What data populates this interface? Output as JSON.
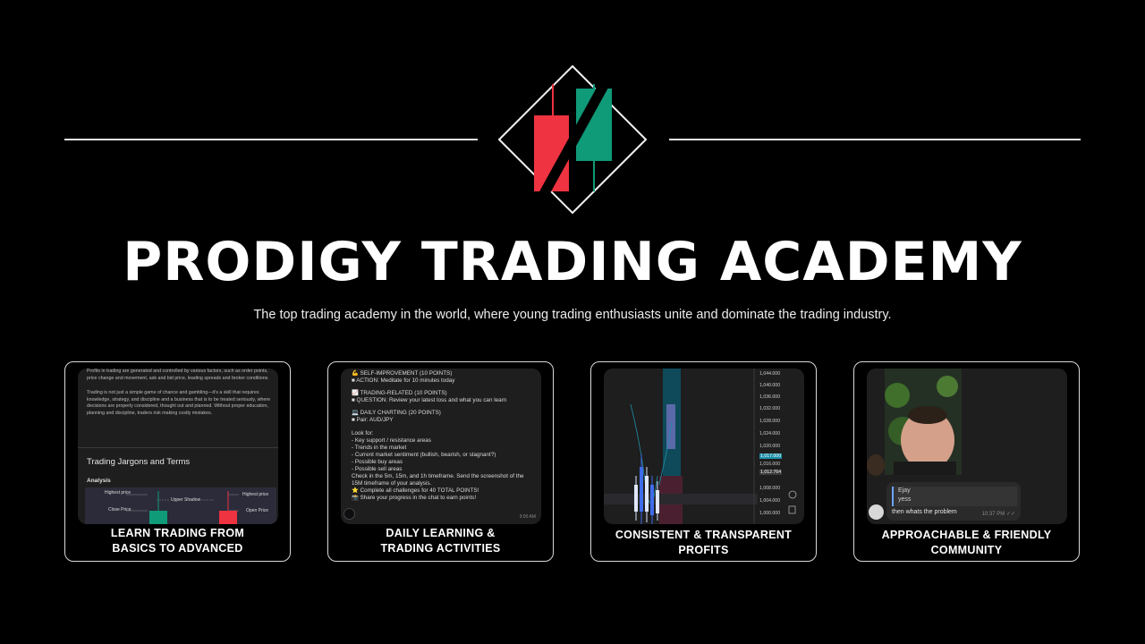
{
  "header": {
    "title": "PRODIGY TRADING ACADEMY",
    "subtitle": "The top trading academy in the world, where young trading enthusiasts unite and dominate the trading industry."
  },
  "colors": {
    "background": "#000000",
    "candle_red": "#ef3340",
    "candle_green": "#0f9a78",
    "rule": "#e8e8e8"
  },
  "cards": [
    {
      "caption_line1": "LEARN TRADING FROM",
      "caption_line2": "BASICS TO ADVANCED",
      "para1": "Profits in trading are generated and controlled by various factors, such as order points, price change and movement, ask and bid price, leading spreads and broker conditions.",
      "para2": "Trading is not just a simple game of chance and gambling—it's a skill that requires knowledge, strategy, and discipline and a business that is to be treated seriously, where decisions are properly considered, thought out and planned. Without proper education, planning and discipline, traders risk making costly mistakes.",
      "heading": "Trading Jargons and Terms",
      "section": "Analysis",
      "labels": [
        "Highest price",
        "Upper Shadow",
        "Highest price",
        "Close Price",
        "Open Price"
      ]
    },
    {
      "caption_line1": "DAILY LEARNING &",
      "caption_line2": "TRADING ACTIVITIES",
      "lines": [
        "💪 SELF-IMPROVEMENT (10 POINTS)",
        "■ ACTION: Meditate for 10 minutes today",
        "",
        "📈 TRADING-RELATED (10 POINTS)",
        "■ QUESTION: Review your latest loss and what you can learn",
        "",
        "💻 DAILY CHARTING (20 POINTS)",
        "■ Pair: AUD/JPY",
        "",
        "Look for:",
        "- Key support / resistance areas",
        "- Trends in the market",
        "- Current market sentiment (bullish, bearish, or stagnant?)",
        "- Possible buy areas",
        "- Possible sell areas",
        "Check in the 5m, 15m, and 1h timeframe. Send the screenshot of the",
        "15M timeframe of your analysis.",
        "⭐ Complete all challenges for 40 TOTAL POINTS!",
        "📸 Share your progress in the chat to earn points!"
      ],
      "time": "3:00 AM"
    },
    {
      "caption_line1": "CONSISTENT & TRANSPARENT",
      "caption_line2": "PROFITS",
      "ticks": [
        "1,044.000",
        "1,040.000",
        "1,036.000",
        "1,032.000",
        "1,028.000",
        "1,024.000",
        "1,020.000",
        "1,017.000",
        "1,016.000",
        "1,012.764",
        "1,008.000",
        "1,004.000",
        "1,000.000"
      ]
    },
    {
      "caption_line1": "APPROACHABLE & FRIENDLY",
      "caption_line2": "COMMUNITY",
      "reply_name": "Ejay",
      "reply_text": "yess",
      "message": "then whats the problem",
      "time": "10:37 PM"
    }
  ]
}
